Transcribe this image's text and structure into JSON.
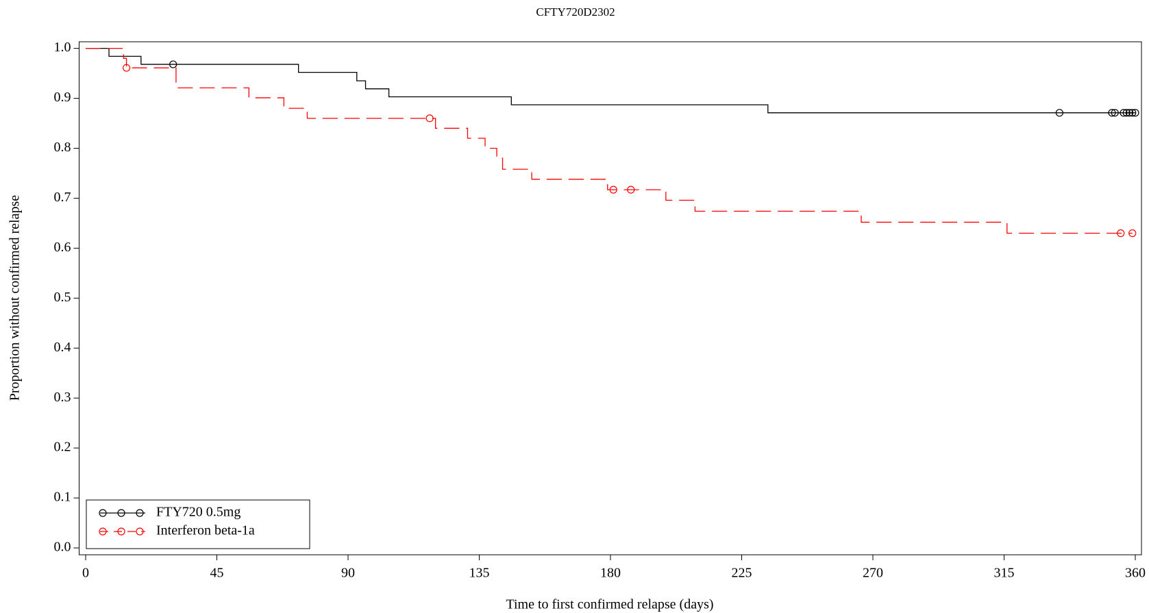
{
  "chart_data": {
    "type": "km",
    "title": "CFTY720D2302",
    "xlabel": "Time to first confirmed relapse (days)",
    "ylabel": "Proportion without confirmed relapse",
    "xlim": [
      0,
      360
    ],
    "xticks": [
      0,
      45,
      90,
      135,
      180,
      225,
      270,
      315,
      360
    ],
    "ylim": [
      0,
      1
    ],
    "yticks": [
      {
        "value": 0,
        "label": "0.0"
      },
      0.1,
      0.2,
      0.3,
      0.4,
      0.5,
      0.6,
      0.7,
      0.8,
      0.9,
      {
        "value": 1,
        "label": "1.0"
      }
    ],
    "legend": "lower left",
    "series": [
      {
        "name": "FTY720 0.5mg",
        "color": "#000000",
        "dash": false,
        "x": [
          0,
          8,
          19,
          73,
          93,
          96,
          104,
          146,
          234
        ],
        "values": [
          1,
          0.984,
          0.968,
          0.952,
          0.935,
          0.919,
          0.903,
          0.887,
          0.871
        ],
        "censored_x": [
          30,
          334,
          352,
          353,
          356,
          357,
          358,
          359,
          360
        ],
        "censored_values": [
          0.968,
          0.871,
          0.871,
          0.871,
          0.871,
          0.871,
          0.871,
          0.871,
          0.871
        ]
      },
      {
        "name": "Interferon beta-1a",
        "color": "#ff0000",
        "dash": true,
        "x": [
          0,
          13,
          14,
          31,
          56,
          68,
          76,
          120,
          131,
          137,
          141,
          143,
          153,
          179,
          199,
          209,
          266,
          316
        ],
        "values": [
          1,
          0.98,
          0.961,
          0.921,
          0.901,
          0.88,
          0.86,
          0.84,
          0.82,
          0.8,
          0.78,
          0.758,
          0.738,
          0.717,
          0.696,
          0.674,
          0.652,
          0.63
        ],
        "censored_x": [
          14,
          118,
          181,
          187,
          355,
          359
        ],
        "censored_values": [
          0.961,
          0.86,
          0.717,
          0.717,
          0.63,
          0.63
        ]
      }
    ]
  }
}
